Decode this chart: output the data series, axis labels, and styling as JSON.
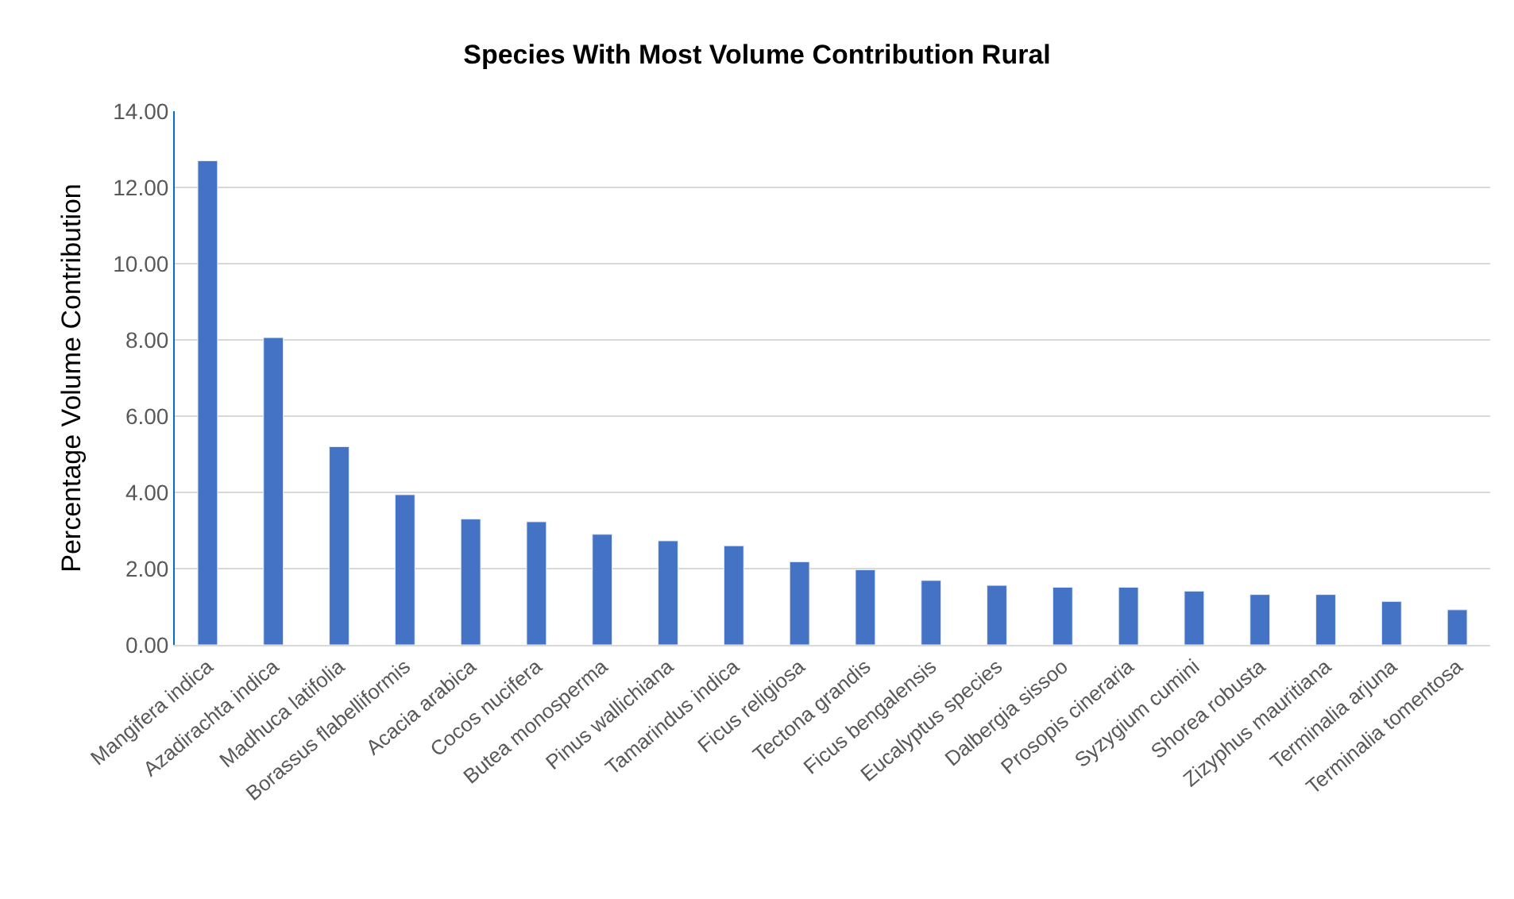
{
  "chart_data": {
    "type": "bar",
    "title": "Species With Most Volume Contribution Rural",
    "ylabel": "Percentage Volume Contribution",
    "categories": [
      "Mangifera indica",
      "Azadirachta indica",
      "Madhuca latifolia",
      "Borassus flabelliformis",
      "Acacia arabica",
      "Cocos nucifera",
      "Butea monosperma",
      "Pinus wallichiana",
      "Tamarindus indica",
      "Ficus religiosa",
      "Tectona grandis",
      "Ficus bengalensis",
      "Eucalyptus species",
      "Dalbergia sissoo",
      "Prosopis cineraria",
      "Syzygium cumini",
      "Shorea robusta",
      "Zizyphus mauritiana",
      "Terminalia arjuna",
      "Terminalia tomentosa"
    ],
    "values": [
      12.7,
      8.06,
      5.2,
      3.94,
      3.3,
      3.23,
      2.9,
      2.73,
      2.6,
      2.18,
      1.97,
      1.69,
      1.56,
      1.51,
      1.51,
      1.41,
      1.32,
      1.32,
      1.14,
      0.92
    ],
    "color": "#4472c4",
    "ylim": [
      0,
      14
    ],
    "yticks": [
      {
        "value": 0,
        "label": "0.00"
      },
      {
        "value": 2,
        "label": "2.00"
      },
      {
        "value": 4,
        "label": "4.00"
      },
      {
        "value": 6,
        "label": "6.00"
      },
      {
        "value": 8,
        "label": "8.00"
      },
      {
        "value": 10,
        "label": "10.00"
      },
      {
        "value": 12,
        "label": "12.00"
      },
      {
        "value": 14,
        "label": "14.00"
      }
    ],
    "grid": "y"
  }
}
